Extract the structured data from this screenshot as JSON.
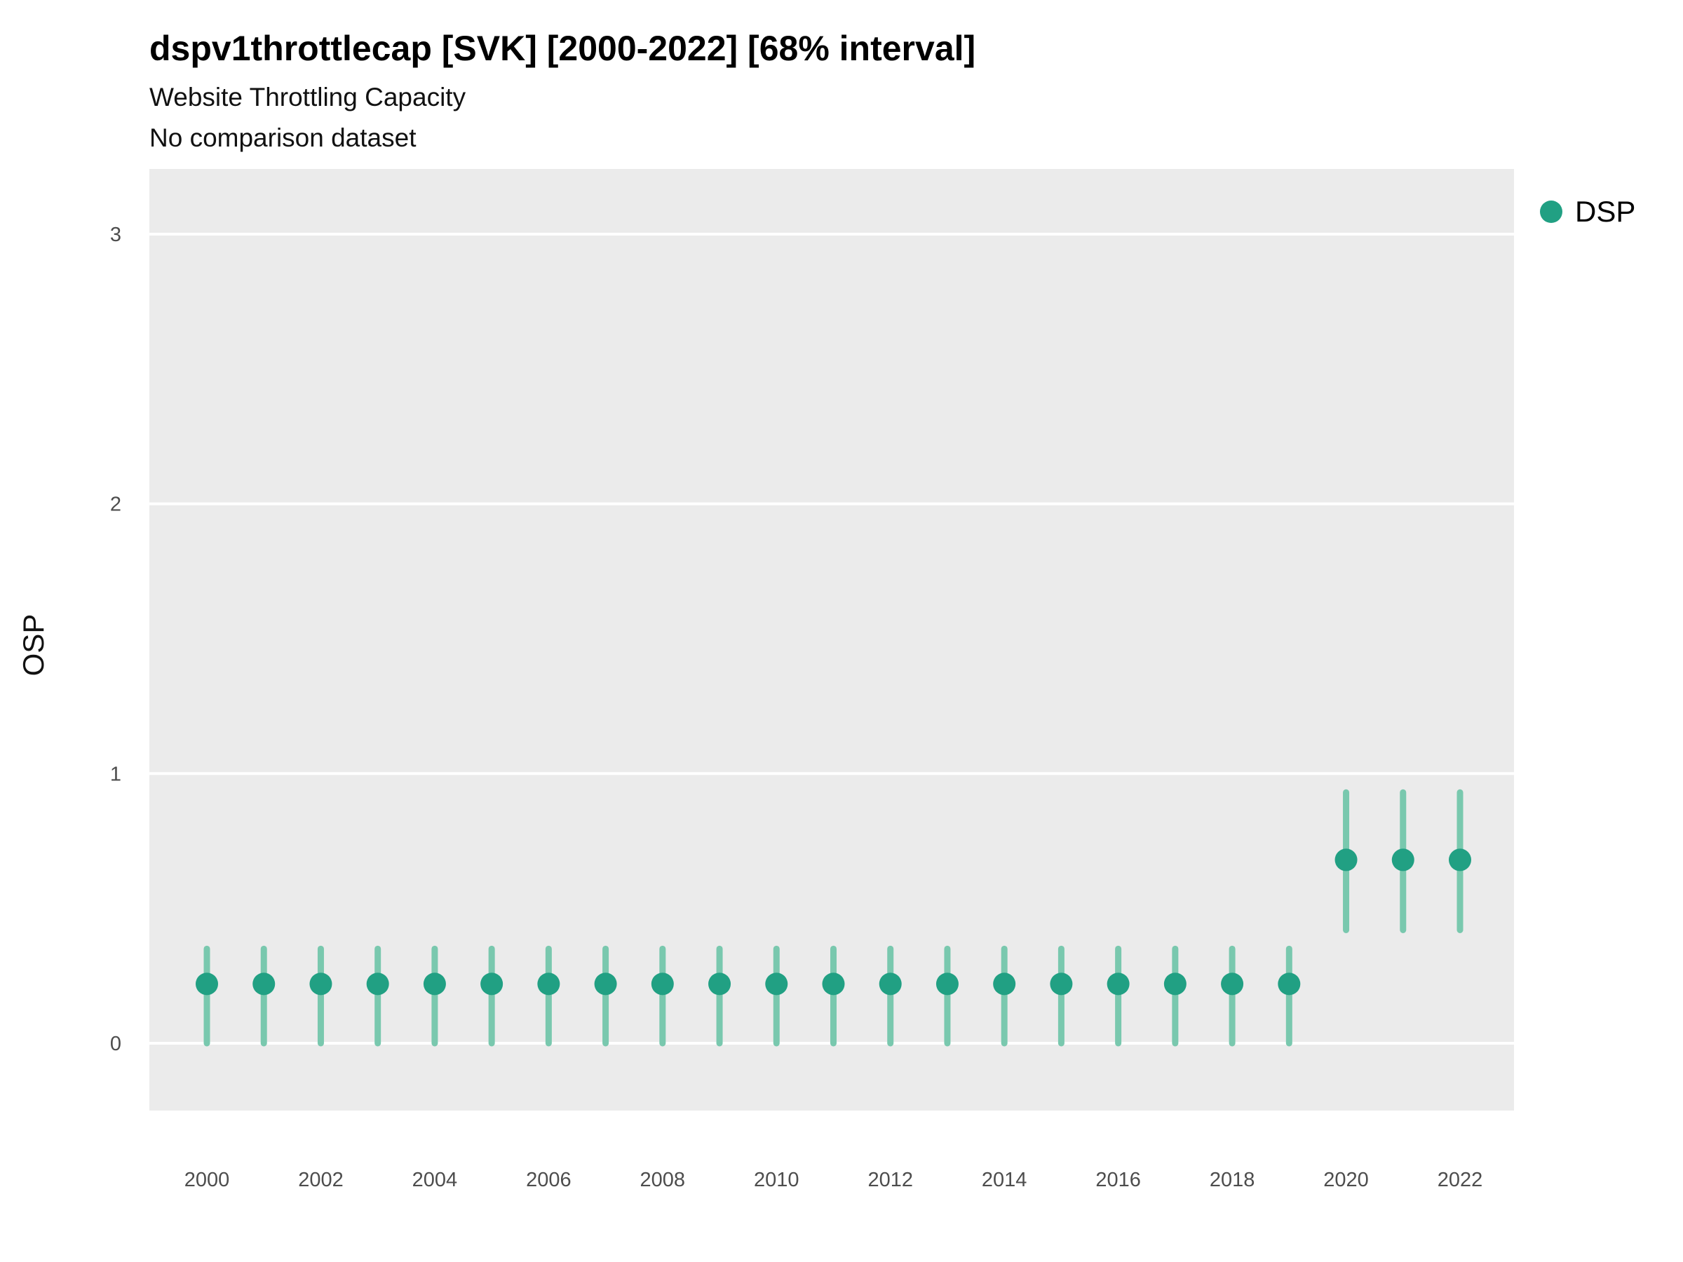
{
  "chart_data": {
    "type": "pointrange",
    "title": "dspv1throttlecap [SVK] [2000-2022] [68% interval]",
    "subtitle": "Website Throttling Capacity",
    "subtitle2": "No comparison dataset",
    "ylabel": "OSP",
    "xlabel": "",
    "legend_label": "DSP",
    "legend_position": "right",
    "grid": true,
    "ylim": [
      -0.25,
      3.25
    ],
    "yticks": [
      0,
      1,
      2,
      3
    ],
    "x": [
      2000,
      2001,
      2002,
      2003,
      2004,
      2005,
      2006,
      2007,
      2008,
      2009,
      2010,
      2011,
      2012,
      2013,
      2014,
      2015,
      2016,
      2017,
      2018,
      2019,
      2020,
      2021,
      2022
    ],
    "xticks": [
      2000,
      2002,
      2004,
      2006,
      2008,
      2010,
      2012,
      2014,
      2016,
      2018,
      2020,
      2022
    ],
    "series": [
      {
        "name": "DSP",
        "values": [
          0.22,
          0.22,
          0.22,
          0.22,
          0.22,
          0.22,
          0.22,
          0.22,
          0.22,
          0.22,
          0.22,
          0.22,
          0.22,
          0.22,
          0.22,
          0.22,
          0.22,
          0.22,
          0.22,
          0.22,
          0.68,
          0.68,
          0.68
        ],
        "low": [
          0.0,
          0.0,
          0.0,
          0.0,
          0.0,
          0.0,
          0.0,
          0.0,
          0.0,
          0.0,
          0.0,
          0.0,
          0.0,
          0.0,
          0.0,
          0.0,
          0.0,
          0.0,
          0.0,
          0.0,
          0.42,
          0.42,
          0.42
        ],
        "high": [
          0.35,
          0.35,
          0.35,
          0.35,
          0.35,
          0.35,
          0.35,
          0.35,
          0.35,
          0.35,
          0.35,
          0.35,
          0.35,
          0.35,
          0.35,
          0.35,
          0.35,
          0.35,
          0.35,
          0.35,
          0.93,
          0.93,
          0.93
        ]
      }
    ],
    "colors": {
      "point": "#21a083",
      "range": "#79c8ae",
      "panel": "#ebebeb",
      "grid": "#ffffff",
      "tick_text": "#4d4d4d",
      "axis_title_text": "#111111"
    }
  }
}
